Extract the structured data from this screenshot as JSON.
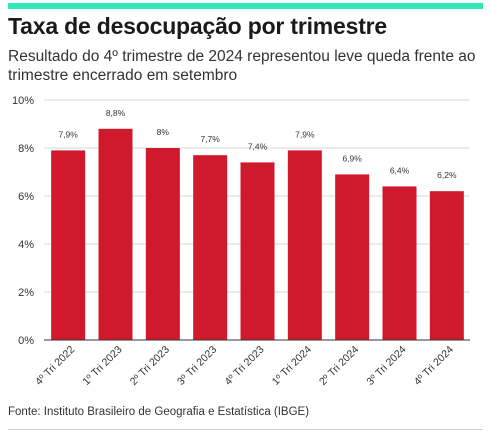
{
  "header": {
    "title": "Taxa de desocupação por trimestre",
    "subtitle": "Resultado do 4º trimestre de 2024 representou leve queda frente ao trimestre encerrado em setembro"
  },
  "footer": {
    "source": "Fonte: Instituto Brasileiro de Geografia e Estatística (IBGE)"
  },
  "colors": {
    "accent": "#2ee8b6",
    "bar": "#d0192c",
    "grid": "#d9d9d9"
  },
  "chart_data": {
    "type": "bar",
    "title": "Taxa de desocupação por trimestre",
    "subtitle": "Resultado do 4º trimestre de 2024 representou leve queda frente ao trimestre encerrado em setembro",
    "categories": [
      "4º Tri 2022",
      "1º Tri 2023",
      "2º Tri 2023",
      "3º Tri 2023",
      "4º Tri 2023",
      "1º Tri 2024",
      "2º Tri 2024",
      "3º Tri 2024",
      "4º Tri 2024"
    ],
    "values": [
      7.9,
      8.8,
      8,
      7.7,
      7.4,
      7.9,
      6.9,
      6.4,
      6.2
    ],
    "data_labels": [
      "7,9%",
      "8,8%",
      "8%",
      "7,7%",
      "7,4%",
      "7,9%",
      "6,9%",
      "6,4%",
      "6,2%"
    ],
    "ylim": [
      0,
      10
    ],
    "yticks": [
      0,
      2,
      4,
      6,
      8,
      10
    ],
    "ytick_labels": [
      "0%",
      "2%",
      "4%",
      "6%",
      "8%",
      "10%"
    ],
    "xlabel": "",
    "ylabel": "",
    "grid": true,
    "legend": "none"
  }
}
